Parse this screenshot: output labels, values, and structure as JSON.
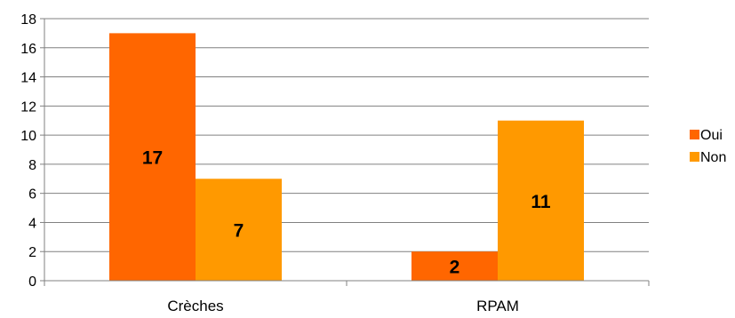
{
  "chart_data": {
    "type": "bar",
    "categories": [
      "Crèches",
      "RPAM"
    ],
    "series": [
      {
        "name": "Oui",
        "values": [
          17,
          2
        ],
        "color": "#FF6600"
      },
      {
        "name": "Non",
        "values": [
          7,
          11
        ],
        "color": "#FF9900"
      }
    ],
    "title": "",
    "xlabel": "",
    "ylabel": "",
    "ylim": [
      0,
      18
    ],
    "yticks": [
      "0",
      "2",
      "4",
      "6",
      "8",
      "10",
      "12",
      "14",
      "16",
      "18"
    ],
    "grid": true,
    "legend": "right"
  }
}
